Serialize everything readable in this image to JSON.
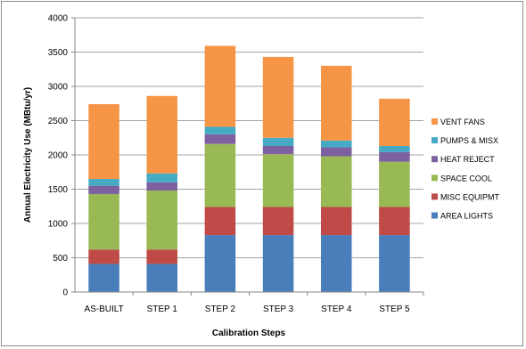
{
  "chart_data": {
    "type": "bar",
    "stacked": true,
    "title": "",
    "xlabel": "Calibration Steps",
    "ylabel": "Annual Electricity Use (MBtu/yr)",
    "ylim": [
      0,
      4000
    ],
    "yticks": [
      0,
      500,
      1000,
      1500,
      2000,
      2500,
      3000,
      3500,
      4000
    ],
    "grid": true,
    "legend_position": "right",
    "categories": [
      "AS-BUILT",
      "STEP 1",
      "STEP 2",
      "STEP 3",
      "STEP 4",
      "STEP 5"
    ],
    "series": [
      {
        "name": "AREA LIGHTS",
        "color": "#4a7ebb",
        "values": [
          410,
          410,
          830,
          830,
          830,
          830
        ]
      },
      {
        "name": "MISC EQUIPMT",
        "color": "#be4b48",
        "values": [
          210,
          210,
          410,
          410,
          410,
          410
        ]
      },
      {
        "name": "SPACE COOL",
        "color": "#98b954",
        "values": [
          810,
          860,
          920,
          770,
          740,
          660
        ]
      },
      {
        "name": "HEAT REJECT",
        "color": "#7d60a0",
        "values": [
          120,
          120,
          140,
          120,
          130,
          140
        ]
      },
      {
        "name": "PUMPS & MISX",
        "color": "#46aac5",
        "values": [
          100,
          130,
          110,
          120,
          100,
          90
        ]
      },
      {
        "name": "VENT FANS",
        "color": "#f69545",
        "values": [
          1090,
          1130,
          1180,
          1180,
          1090,
          690
        ]
      }
    ]
  }
}
